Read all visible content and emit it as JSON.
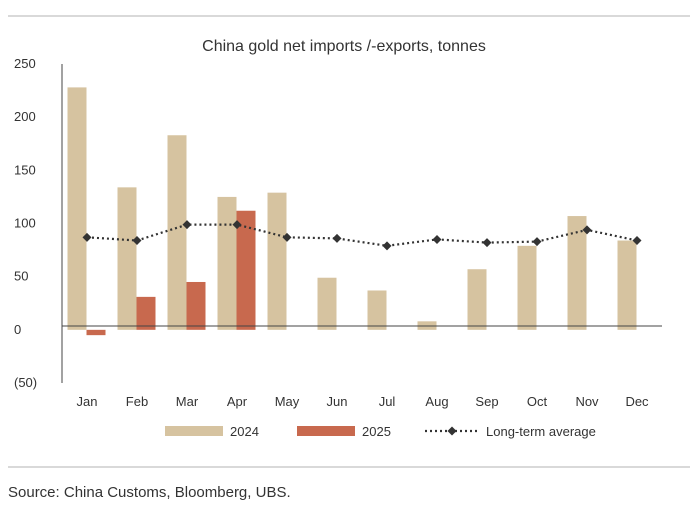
{
  "chart_data": {
    "type": "bar",
    "title": "China gold net imports /-exports, tonnes",
    "xlabel": "",
    "ylabel": "",
    "categories": [
      "Jan",
      "Feb",
      "Mar",
      "Apr",
      "May",
      "Jun",
      "Jul",
      "Aug",
      "Sep",
      "Oct",
      "Nov",
      "Dec"
    ],
    "ylim": [
      -50,
      250
    ],
    "y_ticks": [
      250,
      200,
      150,
      100,
      50,
      0,
      -50
    ],
    "y_tick_labels": [
      "250",
      "200",
      "150",
      "100",
      "50",
      "0",
      "(50)"
    ],
    "grid": false,
    "legend_position": "bottom",
    "series": [
      {
        "name": "2024",
        "type": "bar",
        "color": "#d6c3a0",
        "values": [
          228,
          134,
          183,
          125,
          129,
          49,
          37,
          8,
          57,
          79,
          107,
          84
        ]
      },
      {
        "name": "2025",
        "type": "bar",
        "color": "#c8694e",
        "values": [
          -5,
          31,
          45,
          112,
          null,
          null,
          null,
          null,
          null,
          null,
          null,
          null
        ]
      },
      {
        "name": "Long-term average",
        "type": "line",
        "style": "dotted",
        "marker": "diamond",
        "color": "#333333",
        "values": [
          87,
          84,
          99,
          99,
          87,
          86,
          79,
          85,
          82,
          83,
          94,
          84
        ]
      }
    ]
  },
  "source": "Source: China Customs, Bloomberg, UBS."
}
